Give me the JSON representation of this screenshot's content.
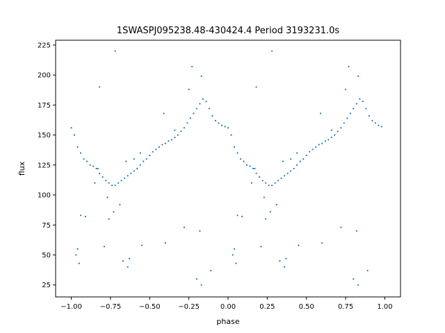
{
  "chart_data": {
    "type": "scatter",
    "title": "1SWASPJ095238.48-430424.4 Period 3193231.0s",
    "xlabel": "phase",
    "ylabel": "flux",
    "xlim": [
      -1.1,
      1.1
    ],
    "ylim": [
      15,
      229
    ],
    "xticks": [
      -1.0,
      -0.75,
      -0.5,
      -0.25,
      0.0,
      0.25,
      0.5,
      0.75,
      1.0
    ],
    "xtick_labels": [
      "−1.00",
      "−0.75",
      "−0.50",
      "−0.25",
      "0.00",
      "0.25",
      "0.50",
      "0.75",
      "1.00"
    ],
    "yticks": [
      25,
      50,
      75,
      100,
      125,
      150,
      175,
      200,
      225
    ],
    "ytick_labels": [
      "25",
      "50",
      "75",
      "100",
      "125",
      "150",
      "175",
      "200",
      "225"
    ],
    "grid": false,
    "marker_color": "#1f77b4",
    "series": [
      {
        "x_range": [
          -1.0,
          1.0
        ],
        "points": [
          [
            0.0,
            156
          ],
          [
            0.02,
            150
          ],
          [
            0.04,
            140
          ],
          [
            0.06,
            135
          ],
          [
            0.08,
            130
          ],
          [
            0.1,
            128
          ],
          [
            0.12,
            125
          ],
          [
            0.14,
            124
          ],
          [
            0.16,
            122
          ],
          [
            0.18,
            118
          ],
          [
            0.2,
            115
          ],
          [
            0.22,
            112
          ],
          [
            0.24,
            110
          ],
          [
            0.26,
            108
          ],
          [
            0.28,
            108
          ],
          [
            0.3,
            110
          ],
          [
            0.32,
            112
          ],
          [
            0.34,
            114
          ],
          [
            0.36,
            116
          ],
          [
            0.38,
            118
          ],
          [
            0.4,
            120
          ],
          [
            0.42,
            122
          ],
          [
            0.44,
            125
          ],
          [
            0.46,
            128
          ],
          [
            0.48,
            130
          ],
          [
            0.5,
            133
          ],
          [
            0.52,
            136
          ],
          [
            0.54,
            138
          ],
          [
            0.56,
            140
          ],
          [
            0.58,
            142
          ],
          [
            0.6,
            143
          ],
          [
            0.62,
            145
          ],
          [
            0.64,
            146
          ],
          [
            0.66,
            148
          ],
          [
            0.68,
            150
          ],
          [
            0.7,
            153
          ],
          [
            0.72,
            156
          ],
          [
            0.74,
            160
          ],
          [
            0.76,
            164
          ],
          [
            0.78,
            168
          ],
          [
            0.8,
            172
          ],
          [
            0.82,
            176
          ],
          [
            0.84,
            180
          ],
          [
            0.86,
            178
          ],
          [
            0.88,
            172
          ],
          [
            0.9,
            166
          ],
          [
            0.92,
            162
          ],
          [
            0.94,
            160
          ],
          [
            0.96,
            158
          ],
          [
            0.98,
            157
          ],
          [
            0.06,
            83
          ],
          [
            0.09,
            82
          ],
          [
            0.24,
            80
          ],
          [
            0.27,
            86
          ],
          [
            0.23,
            98
          ],
          [
            0.31,
            92
          ],
          [
            0.18,
            190
          ],
          [
            0.28,
            220
          ],
          [
            0.77,
            207
          ],
          [
            0.83,
            199
          ],
          [
            0.75,
            188
          ],
          [
            0.72,
            73
          ],
          [
            0.82,
            70
          ],
          [
            0.83,
            25
          ],
          [
            0.8,
            30
          ],
          [
            0.03,
            50
          ],
          [
            0.05,
            43
          ],
          [
            0.04,
            55
          ],
          [
            0.21,
            57
          ],
          [
            0.33,
            45
          ],
          [
            0.36,
            40
          ],
          [
            0.37,
            47
          ],
          [
            0.45,
            58
          ],
          [
            0.6,
            60
          ],
          [
            0.89,
            37
          ],
          [
            0.59,
            168
          ],
          [
            0.66,
            154
          ],
          [
            0.44,
            135
          ],
          [
            0.4,
            130
          ],
          [
            0.35,
            128
          ],
          [
            0.17,
            122
          ],
          [
            0.15,
            110
          ]
        ]
      }
    ]
  }
}
